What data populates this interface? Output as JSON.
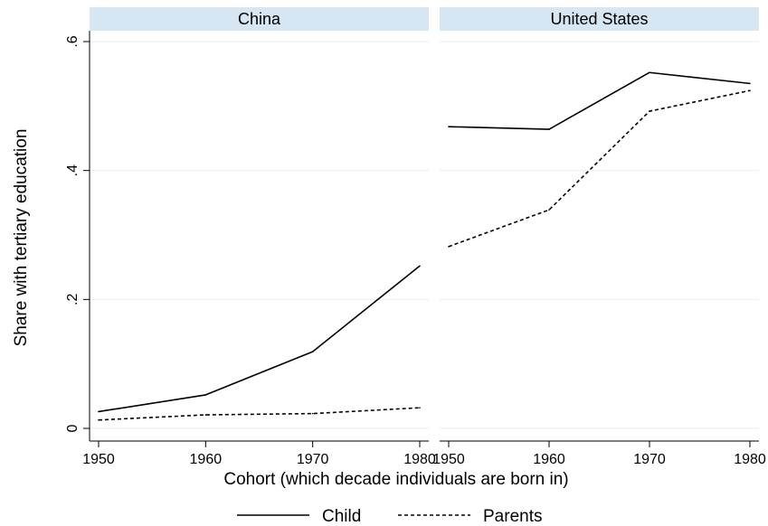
{
  "chart_data": {
    "type": "line",
    "ylabel": "Share with tertiary education",
    "xlabel": "Cohort (which decade individuals are born in)",
    "ylim": [
      0,
      0.6
    ],
    "y_ticks": [
      0,
      0.2,
      0.4,
      0.6
    ],
    "y_tick_labels": [
      "0",
      ".2",
      ".4",
      ".6"
    ],
    "x_ticks": [
      1950,
      1960,
      1970,
      1980
    ],
    "x_tick_labels": [
      "1950",
      "1960",
      "1970",
      "1980"
    ],
    "grid": true,
    "legend_position": "bottom",
    "legend": [
      {
        "label": "Child",
        "style": "solid"
      },
      {
        "label": "Parents",
        "style": "dashed"
      }
    ],
    "panels": [
      {
        "title": "China",
        "x": [
          1950,
          1960,
          1970,
          1980
        ],
        "series": [
          {
            "name": "Child",
            "values": [
              0.026,
              0.052,
              0.119,
              0.252
            ]
          },
          {
            "name": "Parents",
            "values": [
              0.013,
              0.021,
              0.023,
              0.032
            ]
          }
        ]
      },
      {
        "title": "United States",
        "x": [
          1950,
          1960,
          1970,
          1980
        ],
        "series": [
          {
            "name": "Child",
            "values": [
              0.468,
              0.464,
              0.552,
              0.535
            ]
          },
          {
            "name": "Parents",
            "values": [
              0.282,
              0.339,
              0.492,
              0.524
            ]
          }
        ]
      }
    ],
    "colors": {
      "strip": "#d6e6f2",
      "grid": "#e8eef2",
      "line": "#000000"
    }
  }
}
